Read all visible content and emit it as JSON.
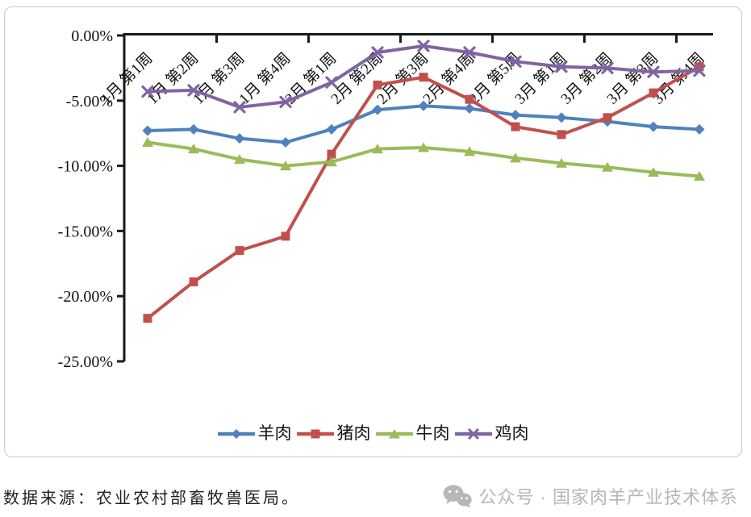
{
  "chart_data": {
    "type": "line",
    "title": "",
    "xlabel": "",
    "ylabel": "",
    "ylim": [
      -25,
      0
    ],
    "grid": false,
    "legend_position": "bottom",
    "y_ticks": [
      "0.00%",
      "-5.00%",
      "-10.00%",
      "-15.00%",
      "-20.00%",
      "-25.00%"
    ],
    "categories": [
      "1月 第1周",
      "1月 第2周",
      "1月 第3周",
      "1月 第4周",
      "2月 第1周",
      "2月 第2周",
      "2月 第3周",
      "2月 第4周",
      "2月 第5周",
      "3月 第1周",
      "3月 第2周",
      "3月 第3周",
      "3月 第4周"
    ],
    "series": [
      {
        "key": "lamb",
        "name": "羊肉",
        "color": "#4F81BD",
        "marker": "diamond",
        "values": [
          -7.3,
          -7.2,
          -7.9,
          -8.2,
          -7.2,
          -5.7,
          -5.4,
          -5.6,
          -6.1,
          -6.3,
          -6.6,
          -7.0,
          -7.2
        ]
      },
      {
        "key": "pork",
        "name": "猪肉",
        "color": "#C0504D",
        "marker": "square",
        "values": [
          -21.7,
          -18.9,
          -16.5,
          -15.4,
          -9.1,
          -3.8,
          -3.2,
          -4.9,
          -7.0,
          -7.6,
          -6.3,
          -4.4,
          -2.4
        ]
      },
      {
        "key": "beef",
        "name": "牛肉",
        "color": "#9BBB59",
        "marker": "triangle",
        "values": [
          -8.2,
          -8.7,
          -9.5,
          -10.0,
          -9.7,
          -8.7,
          -8.6,
          -8.9,
          -9.4,
          -9.8,
          -10.1,
          -10.5,
          -10.8
        ]
      },
      {
        "key": "chicken",
        "name": "鸡肉",
        "color": "#8064A2",
        "marker": "x",
        "values": [
          -4.3,
          -4.2,
          -5.5,
          -5.1,
          -3.6,
          -1.3,
          -0.8,
          -1.3,
          -2.0,
          -2.4,
          -2.5,
          -2.8,
          -2.7
        ]
      }
    ]
  },
  "footer": {
    "source_text": "数据来源：农业农村部畜牧兽医局。",
    "watermark_text": "公众号 · 国家肉羊产业技术体系"
  }
}
